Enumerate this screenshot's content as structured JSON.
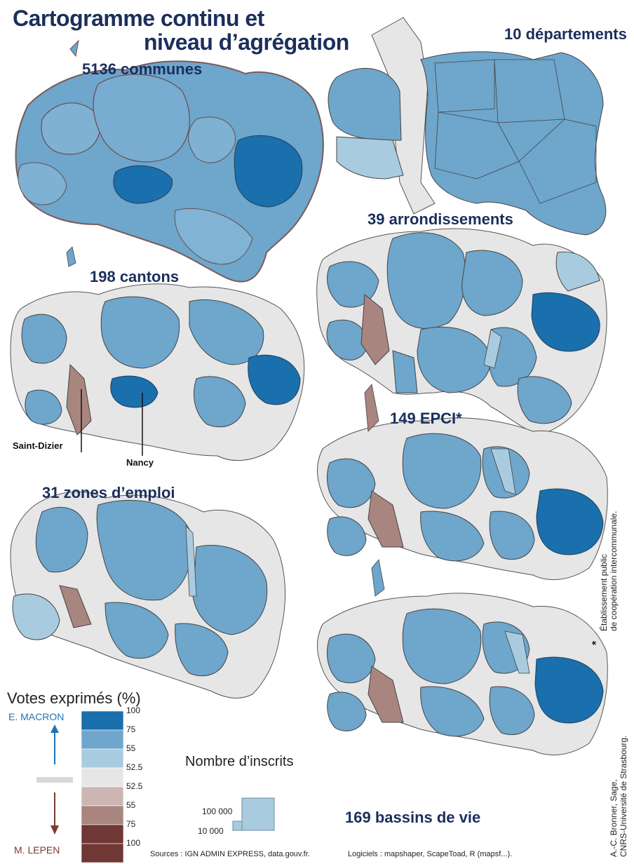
{
  "title": {
    "line1": "Cartogramme continu et",
    "line2": "niveau d’agrégation"
  },
  "maps": [
    {
      "id": "communes",
      "label": "5136 communes"
    },
    {
      "id": "departements",
      "label": "10 départements"
    },
    {
      "id": "arrondissements",
      "label": "39 arrondissements"
    },
    {
      "id": "cantons",
      "label": "198 cantons"
    },
    {
      "id": "epci",
      "label": "149 EPCI*"
    },
    {
      "id": "zones",
      "label": "31 zones d’emploi"
    },
    {
      "id": "bassins",
      "label": "169 bassins de vie"
    }
  ],
  "cities": {
    "saint_dizier": "Saint-Dizier",
    "nancy": "Nancy"
  },
  "legend_votes": {
    "title": "Votes exprimés (%)",
    "top_candidate": "E. MACRON",
    "bottom_candidate": "M. LEPEN",
    "top_color": "#1f74b4",
    "bottom_color": "#7a3b30",
    "classes": [
      {
        "label": "100",
        "color": "#1a6fad"
      },
      {
        "label": "75",
        "color": "#6ea6cc"
      },
      {
        "label": "55",
        "color": "#a9cbdf"
      },
      {
        "label": "52.5",
        "color": "#e6e6e6"
      },
      {
        "label": "52.5",
        "color": "#cbb6b3"
      },
      {
        "label": "55",
        "color": "#a98580"
      },
      {
        "label": "75",
        "color": "#6f3834"
      },
      {
        "label": "100",
        "color": "#6f3834"
      }
    ]
  },
  "legend_size": {
    "title": "Nombre d’inscrits",
    "large": "100 000",
    "small": "10 000"
  },
  "note": {
    "line1": "Établissement public",
    "line2": "de coopération intercommunale."
  },
  "credits": {
    "line1": "A.-C. Bronner, Sage,",
    "line2": "CNRS-Université de Strasbourg."
  },
  "footer": {
    "sources": "Sources : IGN ADMIN EXPRESS, data.gouv.fr.",
    "software": "Logiciels : mapshaper, ScapeToad, R (mapsf...)."
  },
  "colors": {
    "macron_dark": "#1a6fad",
    "macron_mid": "#6ea6cc",
    "macron_light": "#a9cbdf",
    "neutral": "#e6e6e6",
    "lepen_light": "#cbb6b3",
    "lepen_mid": "#a98580"
  }
}
